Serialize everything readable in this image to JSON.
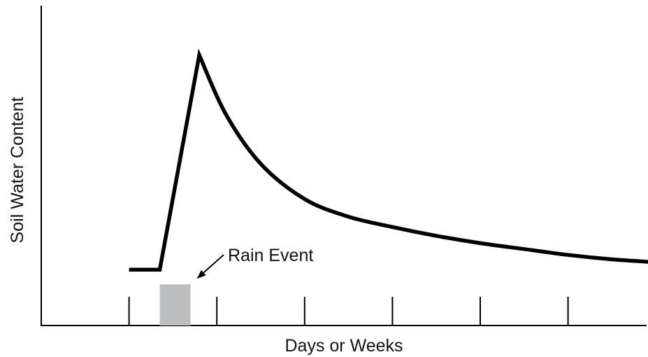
{
  "chart_data": {
    "type": "line",
    "title": "",
    "xlabel": "Days or Weeks",
    "ylabel": "Soil Water Content",
    "xlim": [
      0,
      7
    ],
    "ylim": [
      0,
      100
    ],
    "x_ticks": [
      1,
      2,
      3,
      4,
      5,
      6
    ],
    "tick_labels_shown": false,
    "grid": false,
    "legend": "none",
    "series": [
      {
        "x": [
          1.0,
          1.35,
          1.8,
          2.1,
          2.5,
          3.0,
          3.5,
          4.0,
          4.5,
          5.0,
          5.5,
          6.0,
          6.5,
          7.0
        ],
        "values": [
          19,
          19,
          92,
          72,
          55,
          43,
          37,
          33.5,
          30.5,
          28,
          26,
          24,
          22.5,
          21.5
        ]
      }
    ],
    "rain_event": {
      "x_start": 1.35,
      "x_end": 1.7,
      "height": 14
    },
    "annotations": [
      {
        "text": "Rain Event",
        "target": "rain_event"
      }
    ],
    "colors": {
      "line": "#000000",
      "axis": "#000000",
      "rain_bar": "#bcbec0"
    }
  }
}
